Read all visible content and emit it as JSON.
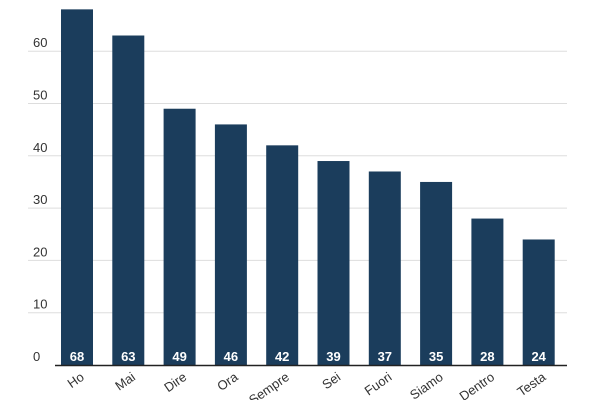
{
  "chart_data": {
    "type": "bar",
    "categories": [
      "Ho",
      "Mai",
      "Dire",
      "Ora",
      "Sempre",
      "Sei",
      "Fuori",
      "Siamo",
      "Dentro",
      "Testa"
    ],
    "values": [
      68,
      63,
      49,
      46,
      42,
      39,
      37,
      35,
      28,
      24
    ],
    "title": "",
    "xlabel": "",
    "ylabel": "",
    "ylim": [
      0,
      70
    ],
    "yticks": [
      0,
      10,
      20,
      30,
      40,
      50,
      60
    ],
    "grid": true,
    "data_labels": true,
    "legend": "none",
    "colors": {
      "bar": "#1b3d5c",
      "grid": "#dddddd",
      "axis": "#222222",
      "tick_text": "#333333",
      "value_text": "#ffffff"
    }
  }
}
